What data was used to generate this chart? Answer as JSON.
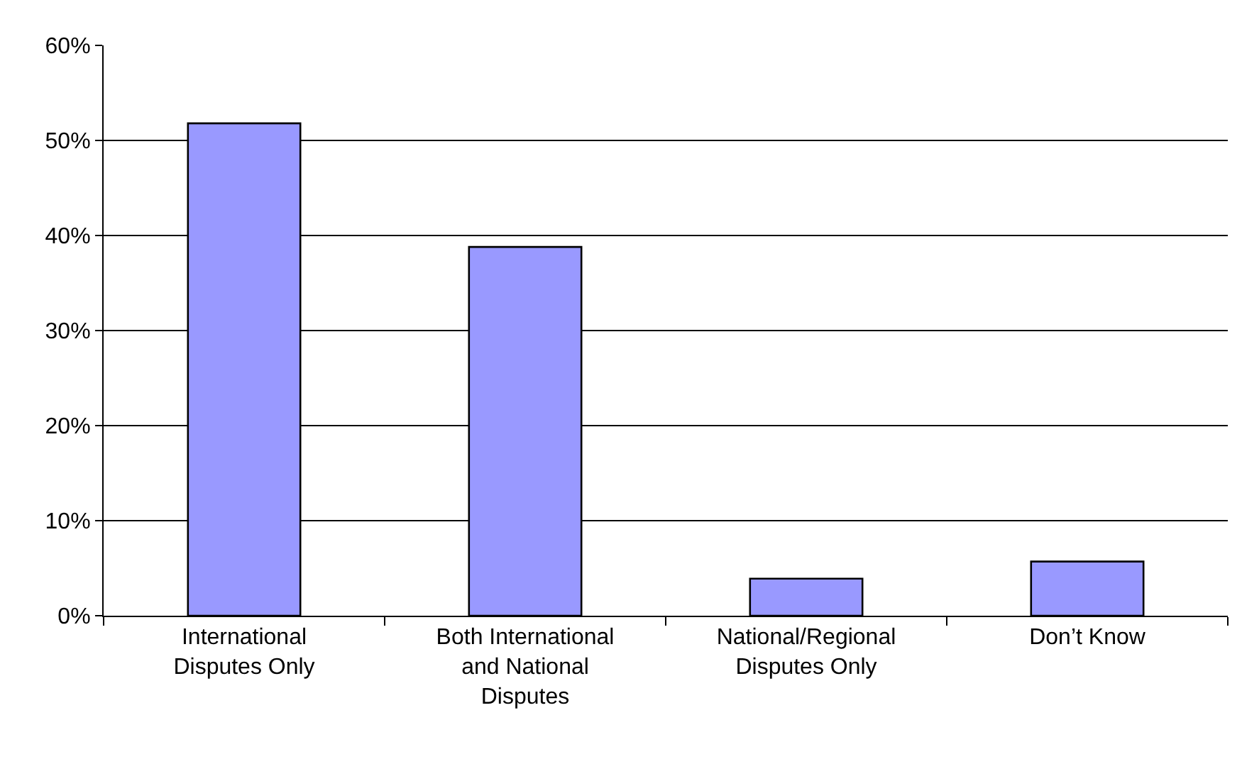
{
  "chart_data": {
    "type": "bar",
    "categories": [
      "International\nDisputes Only",
      "Both International\nand National\nDisputes",
      "National/Regional\nDisputes Only",
      "Don’t Know"
    ],
    "values": [
      51.8,
      38.8,
      3.9,
      5.7
    ],
    "color": "#9999ff",
    "ylim": [
      0,
      60
    ],
    "yticks": [
      {
        "value": 0,
        "label": "0%"
      },
      {
        "value": 10,
        "label": "10%"
      },
      {
        "value": 20,
        "label": "20%"
      },
      {
        "value": 30,
        "label": "30%"
      },
      {
        "value": 40,
        "label": "40%"
      },
      {
        "value": 50,
        "label": "50%"
      },
      {
        "value": 60,
        "label": "60%"
      }
    ],
    "grid": "y"
  }
}
